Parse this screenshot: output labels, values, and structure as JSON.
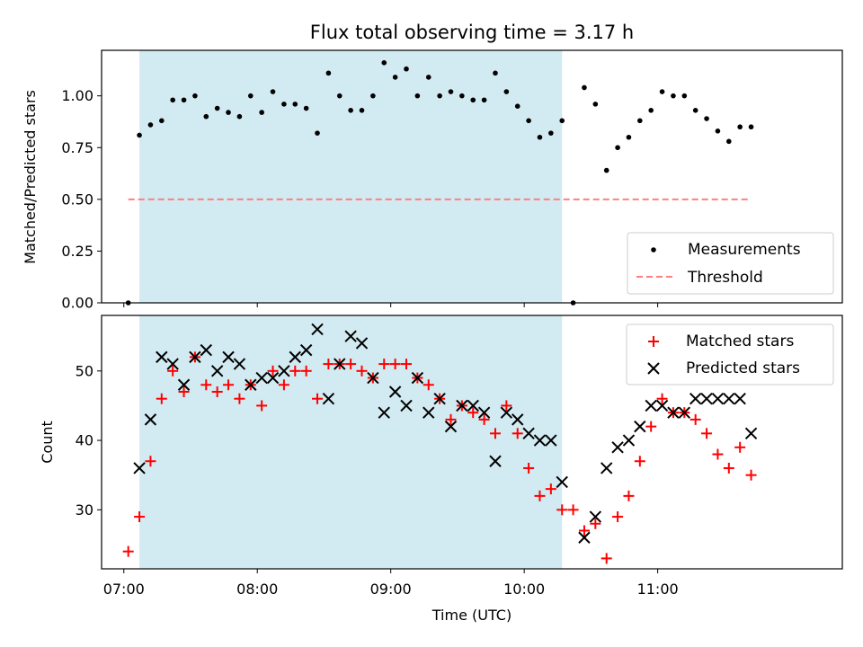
{
  "chart_data": [
    {
      "type": "scatter",
      "title": "Flux total observing time = 3.17 h",
      "ylabel": "Matched/Predicted stars",
      "ylim": [
        0,
        1.22
      ],
      "yticks": [
        "0.00",
        "0.25",
        "0.50",
        "0.75",
        "1.00"
      ],
      "ytick_values": [
        0,
        0.25,
        0.5,
        0.75,
        1.0
      ],
      "shaded_interval": {
        "start": "07:07",
        "end": "10:17",
        "color": "#add8e6"
      },
      "threshold": {
        "value": 0.5,
        "start": "07:02",
        "end": "11:42",
        "color": "#ff7f7f"
      },
      "legend_position": "lower-right",
      "series": [
        {
          "name": "Measurements",
          "color": "#000000",
          "marker": "dot",
          "points": [
            [
              "07:02",
              0.0
            ],
            [
              "07:07",
              0.81
            ],
            [
              "07:12",
              0.86
            ],
            [
              "07:17",
              0.88
            ],
            [
              "07:22",
              0.98
            ],
            [
              "07:27",
              0.98
            ],
            [
              "07:32",
              1.0
            ],
            [
              "07:37",
              0.9
            ],
            [
              "07:42",
              0.94
            ],
            [
              "07:47",
              0.92
            ],
            [
              "07:52",
              0.9
            ],
            [
              "07:57",
              1.0
            ],
            [
              "08:02",
              0.92
            ],
            [
              "08:07",
              1.02
            ],
            [
              "08:12",
              0.96
            ],
            [
              "08:17",
              0.96
            ],
            [
              "08:22",
              0.94
            ],
            [
              "08:27",
              0.82
            ],
            [
              "08:32",
              1.11
            ],
            [
              "08:37",
              1.0
            ],
            [
              "08:42",
              0.93
            ],
            [
              "08:47",
              0.93
            ],
            [
              "08:52",
              1.0
            ],
            [
              "08:57",
              1.16
            ],
            [
              "09:02",
              1.09
            ],
            [
              "09:07",
              1.13
            ],
            [
              "09:12",
              1.0
            ],
            [
              "09:17",
              1.09
            ],
            [
              "09:22",
              1.0
            ],
            [
              "09:27",
              1.02
            ],
            [
              "09:32",
              1.0
            ],
            [
              "09:37",
              0.98
            ],
            [
              "09:42",
              0.98
            ],
            [
              "09:47",
              1.11
            ],
            [
              "09:52",
              1.02
            ],
            [
              "09:57",
              0.95
            ],
            [
              "10:02",
              0.88
            ],
            [
              "10:07",
              0.8
            ],
            [
              "10:12",
              0.82
            ],
            [
              "10:17",
              0.88
            ],
            [
              "10:22",
              0.0
            ],
            [
              "10:27",
              1.04
            ],
            [
              "10:32",
              0.96
            ],
            [
              "10:37",
              0.64
            ],
            [
              "10:42",
              0.75
            ],
            [
              "10:47",
              0.8
            ],
            [
              "10:52",
              0.88
            ],
            [
              "10:57",
              0.93
            ],
            [
              "11:02",
              1.02
            ],
            [
              "11:07",
              1.0
            ],
            [
              "11:12",
              1.0
            ],
            [
              "11:17",
              0.93
            ],
            [
              "11:22",
              0.89
            ],
            [
              "11:27",
              0.83
            ],
            [
              "11:32",
              0.78
            ],
            [
              "11:37",
              0.85
            ],
            [
              "11:42",
              0.85
            ]
          ]
        },
        {
          "name": "Threshold",
          "color": "#ff7f7f",
          "style": "dashed",
          "value": 0.5
        }
      ]
    },
    {
      "type": "scatter",
      "xlabel": "Time (UTC)",
      "ylabel": "Count",
      "ylim": [
        21.5,
        58
      ],
      "yticks": [
        "30",
        "40",
        "50"
      ],
      "ytick_values": [
        30,
        40,
        50
      ],
      "xlim": [
        "06:50",
        "12:23"
      ],
      "xticks": [
        "07:00",
        "08:00",
        "09:00",
        "10:00",
        "11:00"
      ],
      "shaded_interval": {
        "start": "07:07",
        "end": "10:17",
        "color": "#add8e6"
      },
      "legend_position": "upper-right",
      "series": [
        {
          "name": "Matched stars",
          "color": "#ff0000",
          "marker": "plus",
          "points": [
            [
              "07:02",
              24
            ],
            [
              "07:07",
              29
            ],
            [
              "07:12",
              37
            ],
            [
              "07:17",
              46
            ],
            [
              "07:22",
              50
            ],
            [
              "07:27",
              47
            ],
            [
              "07:32",
              52
            ],
            [
              "07:37",
              48
            ],
            [
              "07:42",
              47
            ],
            [
              "07:47",
              48
            ],
            [
              "07:52",
              46
            ],
            [
              "07:57",
              48
            ],
            [
              "08:02",
              45
            ],
            [
              "08:07",
              50
            ],
            [
              "08:12",
              48
            ],
            [
              "08:17",
              50
            ],
            [
              "08:22",
              50
            ],
            [
              "08:27",
              46
            ],
            [
              "08:32",
              51
            ],
            [
              "08:37",
              51
            ],
            [
              "08:42",
              51
            ],
            [
              "08:47",
              50
            ],
            [
              "08:52",
              49
            ],
            [
              "08:57",
              51
            ],
            [
              "09:02",
              51
            ],
            [
              "09:07",
              51
            ],
            [
              "09:12",
              49
            ],
            [
              "09:17",
              48
            ],
            [
              "09:22",
              46
            ],
            [
              "09:27",
              43
            ],
            [
              "09:32",
              45
            ],
            [
              "09:37",
              44
            ],
            [
              "09:42",
              43
            ],
            [
              "09:47",
              41
            ],
            [
              "09:52",
              45
            ],
            [
              "09:57",
              41
            ],
            [
              "10:02",
              36
            ],
            [
              "10:07",
              32
            ],
            [
              "10:12",
              33
            ],
            [
              "10:17",
              30
            ],
            [
              "10:22",
              30
            ],
            [
              "10:27",
              27
            ],
            [
              "10:32",
              28
            ],
            [
              "10:37",
              23
            ],
            [
              "10:42",
              29
            ],
            [
              "10:47",
              32
            ],
            [
              "10:52",
              37
            ],
            [
              "10:57",
              42
            ],
            [
              "11:02",
              46
            ],
            [
              "11:07",
              44
            ],
            [
              "11:12",
              44
            ],
            [
              "11:17",
              43
            ],
            [
              "11:22",
              41
            ],
            [
              "11:27",
              38
            ],
            [
              "11:32",
              36
            ],
            [
              "11:37",
              39
            ],
            [
              "11:42",
              35
            ]
          ]
        },
        {
          "name": "Predicted stars",
          "color": "#000000",
          "marker": "x",
          "points": [
            [
              "07:07",
              36
            ],
            [
              "07:12",
              43
            ],
            [
              "07:17",
              52
            ],
            [
              "07:22",
              51
            ],
            [
              "07:27",
              48
            ],
            [
              "07:32",
              52
            ],
            [
              "07:37",
              53
            ],
            [
              "07:42",
              50
            ],
            [
              "07:47",
              52
            ],
            [
              "07:52",
              51
            ],
            [
              "07:57",
              48
            ],
            [
              "08:02",
              49
            ],
            [
              "08:07",
              49
            ],
            [
              "08:12",
              50
            ],
            [
              "08:17",
              52
            ],
            [
              "08:22",
              53
            ],
            [
              "08:27",
              56
            ],
            [
              "08:32",
              46
            ],
            [
              "08:37",
              51
            ],
            [
              "08:42",
              55
            ],
            [
              "08:47",
              54
            ],
            [
              "08:52",
              49
            ],
            [
              "08:57",
              44
            ],
            [
              "09:02",
              47
            ],
            [
              "09:07",
              45
            ],
            [
              "09:12",
              49
            ],
            [
              "09:17",
              44
            ],
            [
              "09:22",
              46
            ],
            [
              "09:27",
              42
            ],
            [
              "09:32",
              45
            ],
            [
              "09:37",
              45
            ],
            [
              "09:42",
              44
            ],
            [
              "09:47",
              37
            ],
            [
              "09:52",
              44
            ],
            [
              "09:57",
              43
            ],
            [
              "10:02",
              41
            ],
            [
              "10:07",
              40
            ],
            [
              "10:12",
              40
            ],
            [
              "10:17",
              34
            ],
            [
              "10:27",
              26
            ],
            [
              "10:32",
              29
            ],
            [
              "10:37",
              36
            ],
            [
              "10:42",
              39
            ],
            [
              "10:47",
              40
            ],
            [
              "10:52",
              42
            ],
            [
              "10:57",
              45
            ],
            [
              "11:02",
              45
            ],
            [
              "11:07",
              44
            ],
            [
              "11:12",
              44
            ],
            [
              "11:17",
              46
            ],
            [
              "11:22",
              46
            ],
            [
              "11:27",
              46
            ],
            [
              "11:32",
              46
            ],
            [
              "11:37",
              46
            ],
            [
              "11:42",
              41
            ]
          ]
        }
      ]
    }
  ]
}
